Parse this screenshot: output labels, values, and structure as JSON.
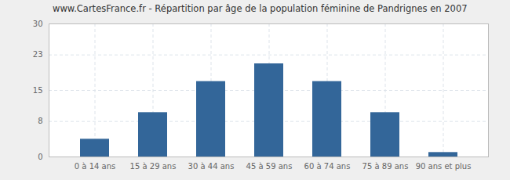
{
  "chart_data": {
    "type": "bar",
    "title": "www.CartesFrance.fr - Répartition par âge de la population féminine de Pandrignes en 2007",
    "categories": [
      "0 à 14 ans",
      "15 à 29 ans",
      "30 à 44 ans",
      "45 à 59 ans",
      "60 à 74 ans",
      "75 à 89 ans",
      "90 ans et plus"
    ],
    "values": [
      4,
      10,
      17,
      21,
      17,
      10,
      1
    ],
    "color": "#336699",
    "ylim": [
      0,
      30
    ],
    "yticks": [
      0,
      8,
      15,
      23,
      30
    ],
    "grid": true
  }
}
